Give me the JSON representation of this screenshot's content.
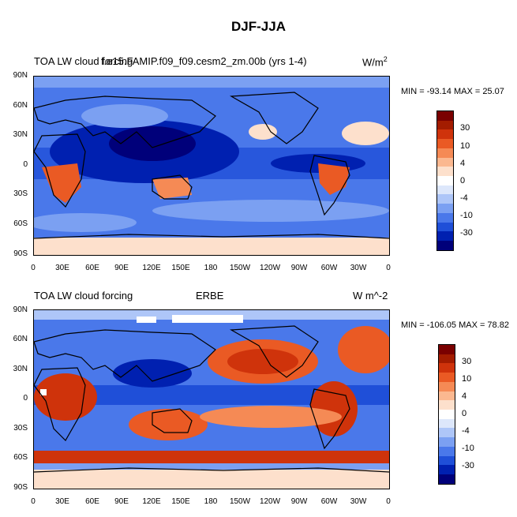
{
  "figure": {
    "title": "DJF-JJA"
  },
  "panels": [
    {
      "left_title": "TOA LW cloud forcing",
      "center_title": "f.e15.FAMIP.f09_f09.cesm2_zm.00b (yrs 1-4)",
      "units_base": "W/m",
      "units_sup": "2",
      "min_max": "MIN = -93.14 MAX =  25.07",
      "colorbar_labels": [
        "30",
        "10",
        "4",
        "0",
        "-4",
        "-10",
        "-30"
      ]
    },
    {
      "left_title": "TOA LW cloud forcing",
      "center_title": "ERBE",
      "units_base": "W m^-2",
      "units_sup": "",
      "min_max": "MIN = -106.05 MAX =  78.82",
      "colorbar_labels": [
        "30",
        "10",
        "4",
        "0",
        "-4",
        "-10",
        "-30"
      ]
    }
  ],
  "lat_labels": [
    "90N",
    "60N",
    "30N",
    "0",
    "30S",
    "60S",
    "90S"
  ],
  "lon_labels": [
    "0",
    "30E",
    "60E",
    "90E",
    "120E",
    "150E",
    "180",
    "150W",
    "120W",
    "90W",
    "60W",
    "30W",
    "0"
  ],
  "colors": {
    "palette": [
      "#00007a",
      "#0020b0",
      "#1f4fd8",
      "#4a78ea",
      "#7ba0f2",
      "#aec6f8",
      "#dde7fb",
      "#ffffff",
      "#fde0cc",
      "#fbb890",
      "#f58a55",
      "#ea5a24",
      "#cf330b",
      "#a31c00",
      "#7a0000"
    ]
  }
}
